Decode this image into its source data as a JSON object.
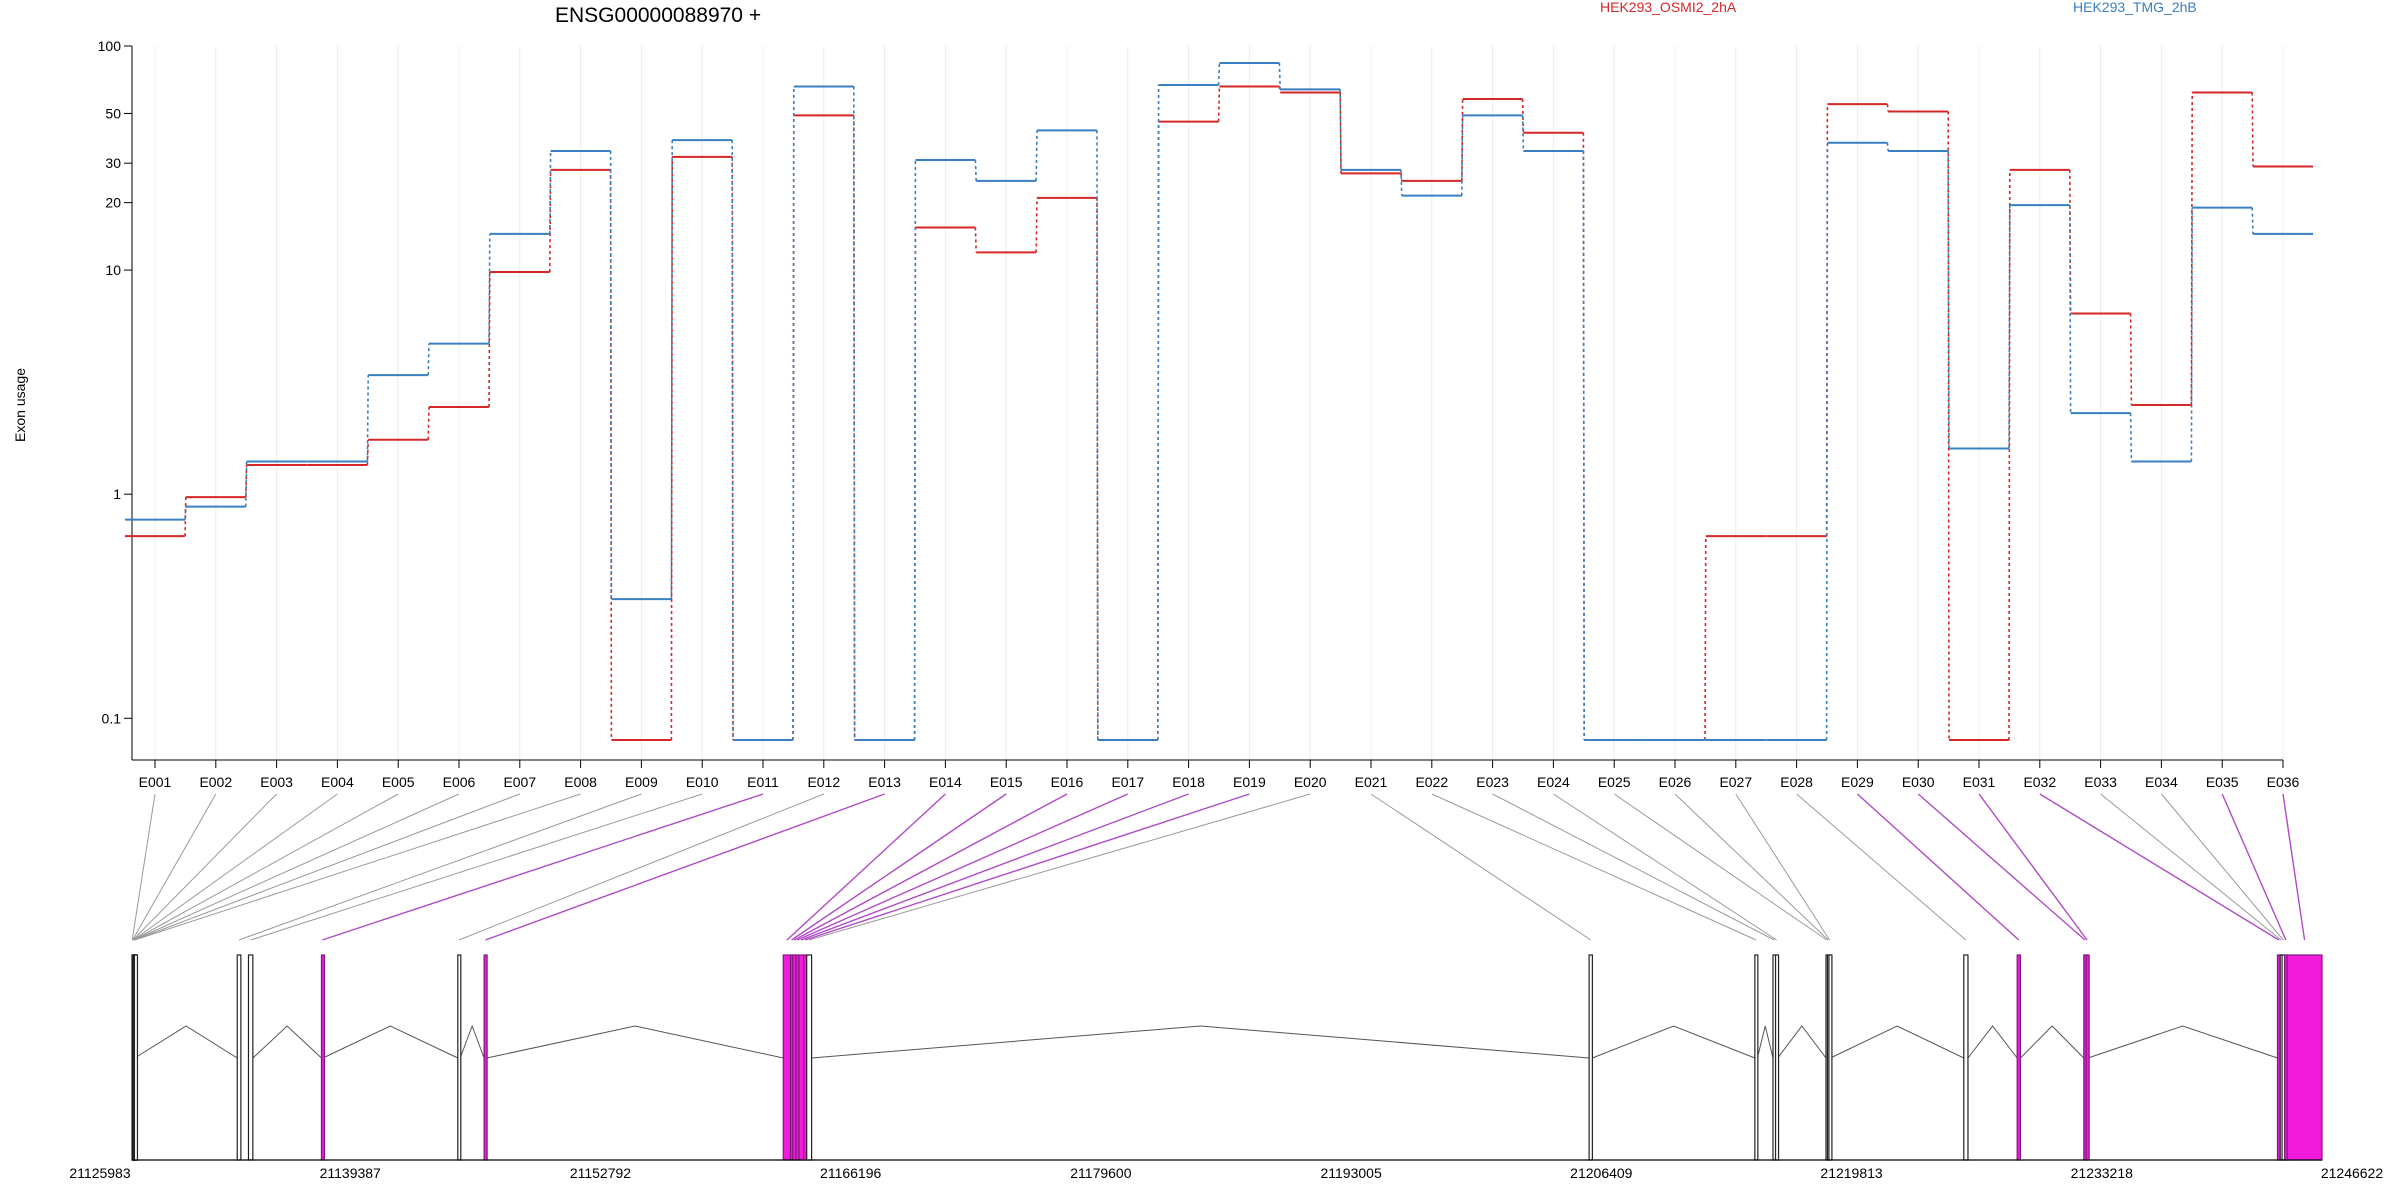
{
  "chart_data": {
    "type": "line",
    "title": "ENSG00000088970 +",
    "ylabel": "Exon usage",
    "yscale": "log",
    "ylim": [
      0.08,
      100
    ],
    "yticks": [
      {
        "value": 0.1,
        "label": "0.1"
      },
      {
        "value": 1,
        "label": "1"
      },
      {
        "value": 10,
        "label": "10"
      },
      {
        "value": 20,
        "label": "20"
      },
      {
        "value": 30,
        "label": "30"
      },
      {
        "value": 50,
        "label": "50"
      },
      {
        "value": 100,
        "label": "100"
      }
    ],
    "categories": [
      "E001",
      "E002",
      "E003",
      "E004",
      "E005",
      "E006",
      "E007",
      "E008",
      "E009",
      "E010",
      "E011",
      "E012",
      "E013",
      "E014",
      "E015",
      "E016",
      "E017",
      "E018",
      "E019",
      "E020",
      "E021",
      "E022",
      "E023",
      "E024",
      "E025",
      "E026",
      "E027",
      "E028",
      "E029",
      "E030",
      "E031",
      "E032",
      "E033",
      "E034",
      "E035",
      "E036"
    ],
    "series": [
      {
        "name": "HEK293_OSMI2_2hA",
        "color": "#d62728",
        "values": [
          0.65,
          0.97,
          1.35,
          1.35,
          1.75,
          2.45,
          9.8,
          28,
          0.08,
          32,
          0.08,
          49,
          0.08,
          15.5,
          12,
          21,
          0.08,
          46,
          66,
          62,
          27,
          25,
          58,
          41,
          0.08,
          0.08,
          0.65,
          0.65,
          55,
          51,
          0.08,
          28,
          6.4,
          2.5,
          62,
          29
        ]
      },
      {
        "name": "HEK293_TMG_2hB",
        "color": "#3a7fc1",
        "values": [
          0.77,
          0.88,
          1.4,
          1.4,
          3.4,
          4.7,
          14.5,
          34,
          0.34,
          38,
          0.08,
          66,
          0.08,
          31,
          25,
          42,
          0.08,
          67,
          84,
          64,
          28,
          21.5,
          49,
          34,
          0.08,
          0.08,
          0.08,
          0.08,
          37,
          34,
          1.6,
          19.5,
          2.3,
          1.4,
          19,
          14.5
        ]
      }
    ],
    "grid": "vertical",
    "legend": "top",
    "highlight_color": "#f21bdc",
    "gene_track": {
      "start_label": "21125983",
      "end_label": "21246622",
      "tick_labels": [
        "21125983",
        "21139387",
        "21152792",
        "21166196",
        "21179600",
        "21193005",
        "21206409",
        "21219813",
        "21233218",
        "21246622"
      ],
      "exons": [
        {
          "id": "E001",
          "start": 21125983,
          "end": 21126003,
          "hl": false
        },
        {
          "id": "E002",
          "start": 21126003,
          "end": 21126018,
          "hl": false
        },
        {
          "id": "E003",
          "start": 21126018,
          "end": 21126043,
          "hl": false
        },
        {
          "id": "E004",
          "start": 21126043,
          "end": 21126063,
          "hl": false
        },
        {
          "id": "E005",
          "start": 21126063,
          "end": 21126083,
          "hl": false
        },
        {
          "id": "E006",
          "start": 21126083,
          "end": 21126103,
          "hl": false
        },
        {
          "id": "E007",
          "start": 21126103,
          "end": 21126118,
          "hl": false
        },
        {
          "id": "E008",
          "start": 21126118,
          "end": 21126140,
          "hl": false
        },
        {
          "id": "E009",
          "start": 21131780,
          "end": 21131980,
          "hl": false
        },
        {
          "id": "E010",
          "start": 21132400,
          "end": 21132640,
          "hl": false
        },
        {
          "id": "E011",
          "start": 21136420,
          "end": 21136500,
          "hl": true
        },
        {
          "id": "E012",
          "start": 21143930,
          "end": 21144060,
          "hl": false
        },
        {
          "id": "E013",
          "start": 21145380,
          "end": 21145530,
          "hl": true
        },
        {
          "id": "E014",
          "start": 21161860,
          "end": 21162260,
          "hl": true
        },
        {
          "id": "E015",
          "start": 21162260,
          "end": 21162380,
          "hl": true
        },
        {
          "id": "E016",
          "start": 21162380,
          "end": 21162560,
          "hl": true
        },
        {
          "id": "E017",
          "start": 21162560,
          "end": 21162720,
          "hl": true
        },
        {
          "id": "E018",
          "start": 21162720,
          "end": 21162980,
          "hl": true
        },
        {
          "id": "E019",
          "start": 21162980,
          "end": 21163150,
          "hl": true
        },
        {
          "id": "E020",
          "start": 21163150,
          "end": 21163420,
          "hl": false
        },
        {
          "id": "E021",
          "start": 21206250,
          "end": 21206430,
          "hl": false
        },
        {
          "id": "E022",
          "start": 21215380,
          "end": 21215520,
          "hl": false
        },
        {
          "id": "E023",
          "start": 21216380,
          "end": 21216520,
          "hl": false
        },
        {
          "id": "E024",
          "start": 21216520,
          "end": 21216640,
          "hl": false
        },
        {
          "id": "E025",
          "start": 21219300,
          "end": 21219380,
          "hl": false
        },
        {
          "id": "E026",
          "start": 21219380,
          "end": 21219460,
          "hl": false
        },
        {
          "id": "E027",
          "start": 21219460,
          "end": 21219540,
          "hl": false
        },
        {
          "id": "E028",
          "start": 21226890,
          "end": 21227120,
          "hl": false
        },
        {
          "id": "E029",
          "start": 21229830,
          "end": 21230010,
          "hl": true
        },
        {
          "id": "E030",
          "start": 21233500,
          "end": 21233630,
          "hl": true
        },
        {
          "id": "E031",
          "start": 21233630,
          "end": 21233730,
          "hl": true
        },
        {
          "id": "E032",
          "start": 21244170,
          "end": 21244320,
          "hl": true
        },
        {
          "id": "E033",
          "start": 21244320,
          "end": 21244420,
          "hl": false
        },
        {
          "id": "E034",
          "start": 21244420,
          "end": 21244560,
          "hl": false
        },
        {
          "id": "E035",
          "start": 21244560,
          "end": 21244700,
          "hl": true
        },
        {
          "id": "E036",
          "start": 21244700,
          "end": 21246622,
          "hl": true
        }
      ]
    }
  }
}
